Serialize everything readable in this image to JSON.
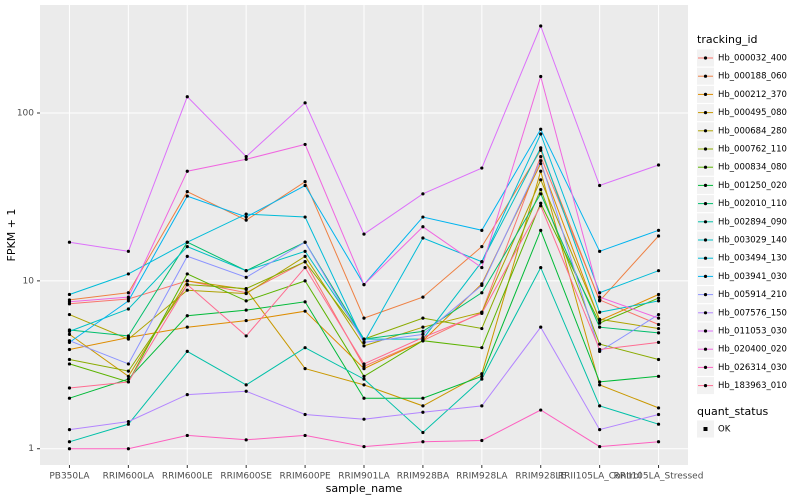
{
  "chart_data": {
    "type": "line",
    "x_label": "sample_name",
    "y_label": "FPKM + 1",
    "log_y": true,
    "grid": true,
    "legend_title": "tracking_id",
    "legend_position": "right",
    "point_color": "#000000",
    "categories": [
      "PB350LA",
      "RRIM600LA",
      "RRIM600LE",
      "RRIM600SE",
      "RRIM600PE",
      "RRIM901LA",
      "RRIM928BA",
      "RRIM928LA",
      "RRIM928LE",
      "RRII105LA_Control",
      "RRII105LA_Stressed"
    ],
    "ylim": [
      0.8,
      440
    ],
    "yticks": [
      1,
      10,
      100
    ],
    "series": [
      {
        "name": "Hb_000032_400",
        "color": "#F8766D",
        "values": [
          7.3,
          7.8,
          10,
          8.5,
          13,
          3.1,
          4.4,
          6.5,
          55,
          7.7,
          5.5
        ]
      },
      {
        "name": "Hb_000188_060",
        "color": "#EE8043",
        "values": [
          7.7,
          8.5,
          34,
          23,
          39,
          6,
          8,
          16,
          60,
          7.6,
          18.5
        ]
      },
      {
        "name": "Hb_000212_370",
        "color": "#DE8C00",
        "values": [
          3.9,
          4.6,
          5.3,
          5.8,
          6.6,
          3.0,
          4.4,
          9.6,
          50,
          5.8,
          8.3
        ]
      },
      {
        "name": "Hb_000495_080",
        "color": "#C99800",
        "values": [
          4.8,
          2.7,
          10,
          8.9,
          3,
          2.4,
          1.8,
          2.8,
          45,
          2.4,
          1.75
        ]
      },
      {
        "name": "Hb_000684_280",
        "color": "#AEA200",
        "values": [
          6.3,
          4.5,
          8.8,
          8.4,
          14,
          4.1,
          5.3,
          6.5,
          40,
          5.9,
          5.2
        ]
      },
      {
        "name": "Hb_000762_110",
        "color": "#8AAB00",
        "values": [
          3.4,
          2.9,
          9.5,
          9,
          13,
          4.5,
          6,
          5.2,
          35,
          4.2,
          3.4
        ]
      },
      {
        "name": "Hb_000834_080",
        "color": "#5BB300",
        "values": [
          3.2,
          2.5,
          11,
          7.6,
          10,
          2.7,
          4.4,
          4.0,
          29,
          5.6,
          7.9
        ]
      },
      {
        "name": "Hb_001250_020",
        "color": "#00BA38",
        "values": [
          2,
          2.6,
          6.2,
          6.7,
          7.5,
          2,
          2,
          2.7,
          20,
          2.5,
          2.7
        ]
      },
      {
        "name": "Hb_002010_110",
        "color": "#00BE6C",
        "values": [
          5.1,
          4.7,
          17,
          11.5,
          17,
          4.5,
          5,
          8.5,
          33,
          5.3,
          4.9
        ]
      },
      {
        "name": "Hb_002894_090",
        "color": "#00C0A8",
        "values": [
          1.1,
          1.4,
          3.8,
          2.4,
          4,
          2.6,
          1.25,
          2.6,
          12,
          1.8,
          1.4
        ]
      },
      {
        "name": "Hb_003029_140",
        "color": "#00BFC4",
        "values": [
          5.0,
          6.8,
          16,
          11.5,
          15,
          4.5,
          4.5,
          13,
          62,
          6.5,
          7.6
        ]
      },
      {
        "name": "Hb_003494_130",
        "color": "#00BCD8",
        "values": [
          8.3,
          11,
          17,
          25,
          24,
          4.3,
          18,
          13,
          75,
          8.5,
          11.5
        ]
      },
      {
        "name": "Hb_003941_030",
        "color": "#00B4EF",
        "values": [
          4.3,
          7.6,
          32,
          24,
          37,
          9.5,
          24,
          20,
          80,
          15,
          20
        ]
      },
      {
        "name": "Hb_005914_210",
        "color": "#8B93FF",
        "values": [
          4.4,
          3.2,
          14,
          10.5,
          17,
          4.3,
          4.8,
          9.4,
          52,
          3.8,
          6.3
        ]
      },
      {
        "name": "Hb_007576_150",
        "color": "#B385FF",
        "values": [
          1.3,
          1.45,
          2.1,
          2.2,
          1.6,
          1.5,
          1.65,
          1.8,
          5.3,
          1.3,
          1.6
        ]
      },
      {
        "name": "Hb_011053_030",
        "color": "#DC71FA",
        "values": [
          17,
          15,
          125,
          55,
          115,
          19,
          33,
          47,
          330,
          37,
          49
        ]
      },
      {
        "name": "Hb_020400_020",
        "color": "#F066E0",
        "values": [
          7.5,
          8,
          45,
          53,
          65,
          9.5,
          21,
          12,
          165,
          8,
          6
        ]
      },
      {
        "name": "Hb_026314_030",
        "color": "#FD61C0",
        "values": [
          1.0,
          1.0,
          1.2,
          1.13,
          1.2,
          1.03,
          1.1,
          1.12,
          1.7,
          1.03,
          1.1
        ]
      },
      {
        "name": "Hb_183963_010",
        "color": "#FF6C91",
        "values": [
          2.3,
          2.5,
          9.5,
          4.7,
          12,
          3.2,
          4.6,
          6.4,
          28,
          3.9,
          4.3
        ]
      }
    ],
    "legend2": {
      "title": "quant_status",
      "items": [
        "OK"
      ]
    }
  }
}
